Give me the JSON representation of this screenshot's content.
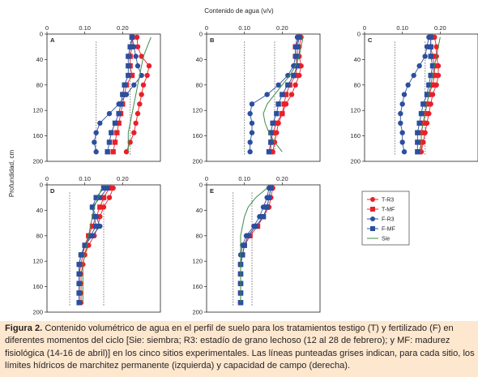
{
  "figure": {
    "top_axis_title": "Contenido de agua (v/v)",
    "left_axis_title": "Profundidad, cm",
    "caption_label": "Figura 2.",
    "caption_text": "Contenido volumétrico de agua en el perfil de suelo para los tratamientos testigo (T) y fertilizado (F) en diferentes momentos del ciclo [Sie: siembra; R3: estadío de grano lechoso (12 al 28 de febrero); y MF: madurez fisiológica (14-16 de abril)] en los cinco sitios experimentales. Las líneas punteadas grises indican, para cada sitio, los límites hídricos de marchitez permanente (izquierda) y capacidad de campo (derecha)."
  },
  "colors": {
    "T": "#e8202a",
    "F": "#2b4f9e",
    "sie": "#3f8a4a",
    "limits": "#7f7f7f"
  },
  "legend": [
    "T-R3",
    "T-MF",
    "F-R3",
    "F-MF",
    "Sie"
  ],
  "chart_data": {
    "type": "line",
    "x_label": "Contenido de agua (v/v)",
    "y_label": "Profundidad, cm",
    "xlim": [
      0,
      0.3
    ],
    "ylim": [
      200,
      0
    ],
    "x_ticks": [
      0,
      0.1,
      0.2
    ],
    "x_tick_labels": [
      "0",
      "0.10",
      "0.20"
    ],
    "y_ticks": [
      0,
      40,
      80,
      120,
      160,
      200
    ],
    "panels": [
      {
        "label": "A",
        "depths": [
          5,
          20,
          35,
          50,
          65,
          80,
          95,
          110,
          125,
          140,
          155,
          170,
          185
        ],
        "series": [
          {
            "name": "T-R3",
            "values": [
              0.238,
              0.24,
              0.25,
              0.27,
              0.265,
              0.255,
              0.25,
              0.245,
              0.24,
              0.235,
              0.23,
              0.22,
              0.21
            ]
          },
          {
            "name": "T-MF",
            "values": [
              0.225,
              0.225,
              0.22,
              0.22,
              0.225,
              0.21,
              0.205,
              0.2,
              0.195,
              0.19,
              0.185,
              0.18,
              0.175
            ]
          },
          {
            "name": "F-R3",
            "values": [
              0.225,
              0.23,
              0.235,
              0.24,
              0.25,
              0.23,
              0.21,
              0.19,
              0.165,
              0.14,
              0.13,
              0.125,
              0.13
            ]
          },
          {
            "name": "F-MF",
            "values": [
              0.225,
              0.22,
              0.215,
              0.215,
              0.215,
              0.205,
              0.2,
              0.195,
              0.19,
              0.18,
              0.17,
              0.165,
              0.16
            ]
          },
          {
            "name": "Sie",
            "values": [
              0.275,
              0.265,
              0.255,
              0.25,
              0.245,
              0.24,
              0.235,
              0.23,
              0.225,
              0.22,
              0.215,
              0.215,
              0.215
            ]
          }
        ],
        "pmp": 0.13,
        "cc": 0.22
      },
      {
        "label": "B",
        "depths": [
          5,
          20,
          35,
          50,
          65,
          80,
          95,
          110,
          125,
          140,
          155,
          170,
          185
        ],
        "series": [
          {
            "name": "T-R3",
            "values": [
              0.25,
              0.245,
              0.245,
              0.25,
              0.245,
              0.235,
              0.225,
              0.21,
              0.2,
              0.19,
              0.185,
              0.18,
              0.175
            ]
          },
          {
            "name": "T-MF",
            "values": [
              0.245,
              0.235,
              0.235,
              0.24,
              0.235,
              0.22,
              0.21,
              0.205,
              0.2,
              0.185,
              0.175,
              0.17,
              0.17
            ]
          },
          {
            "name": "F-R3",
            "values": [
              0.24,
              0.235,
              0.235,
              0.23,
              0.215,
              0.19,
              0.16,
              0.12,
              0.115,
              0.12,
              0.12,
              0.115,
              0.115
            ]
          },
          {
            "name": "F-MF",
            "values": [
              0.245,
              0.24,
              0.24,
              0.24,
              0.23,
              0.215,
              0.2,
              0.19,
              0.185,
              0.175,
              0.17,
              0.17,
              0.165
            ]
          },
          {
            "name": "Sie",
            "values": [
              0.255,
              0.25,
              0.245,
              0.235,
              0.22,
              0.2,
              0.18,
              0.16,
              0.15,
              0.155,
              0.165,
              0.18,
              0.2
            ]
          }
        ],
        "pmp": 0.1,
        "cc": 0.18
      },
      {
        "label": "C",
        "depths": [
          5,
          20,
          35,
          50,
          65,
          80,
          95,
          110,
          125,
          140,
          155,
          170,
          185
        ],
        "series": [
          {
            "name": "T-R3",
            "values": [
              0.185,
              0.19,
              0.19,
              0.195,
              0.195,
              0.19,
              0.18,
              0.175,
              0.17,
              0.165,
              0.16,
              0.155,
              0.15
            ]
          },
          {
            "name": "T-MF",
            "values": [
              0.175,
              0.175,
              0.18,
              0.185,
              0.185,
              0.18,
              0.17,
              0.165,
              0.16,
              0.155,
              0.15,
              0.15,
              0.145
            ]
          },
          {
            "name": "F-R3",
            "values": [
              0.17,
              0.165,
              0.16,
              0.145,
              0.13,
              0.115,
              0.105,
              0.1,
              0.095,
              0.095,
              0.1,
              0.1,
              0.105
            ]
          },
          {
            "name": "F-MF",
            "values": [
              0.175,
              0.175,
              0.175,
              0.18,
              0.175,
              0.17,
              0.165,
              0.155,
              0.15,
              0.145,
              0.14,
              0.14,
              0.14
            ]
          },
          {
            "name": "Sie",
            "values": [
              0.2,
              0.195,
              0.19,
              0.185,
              0.18,
              0.175,
              0.17,
              0.165,
              0.16,
              0.155,
              0.15,
              0.15,
              0.15
            ]
          }
        ],
        "pmp": 0.08,
        "cc": 0.16
      },
      {
        "label": "D",
        "depths": [
          5,
          20,
          35,
          50,
          65,
          80,
          95,
          110,
          125,
          140,
          155,
          170,
          185
        ],
        "series": [
          {
            "name": "T-R3",
            "values": [
              0.175,
              0.165,
              0.15,
              0.14,
              0.135,
              0.125,
              0.11,
              0.1,
              0.095,
              0.09,
              0.09,
              0.09,
              0.09
            ]
          },
          {
            "name": "T-MF",
            "values": [
              0.165,
              0.15,
              0.14,
              0.13,
              0.12,
              0.11,
              0.1,
              0.095,
              0.09,
              0.085,
              0.085,
              0.085,
              0.085
            ]
          },
          {
            "name": "F-R3",
            "values": [
              0.16,
              0.14,
              0.12,
              0.13,
              0.14,
              0.12,
              0.1,
              0.09,
              0.085,
              0.085,
              0.085,
              0.085,
              0.085
            ]
          },
          {
            "name": "F-MF",
            "values": [
              0.15,
              0.13,
              0.12,
              0.125,
              0.13,
              0.115,
              0.1,
              0.09,
              0.085,
              0.085,
              0.085,
              0.085,
              0.085
            ]
          },
          {
            "name": "Sie",
            "values": [
              0.145,
              0.135,
              0.125,
              0.12,
              0.115,
              0.11,
              0.105,
              0.1,
              0.095,
              0.095,
              0.095,
              0.095,
              0.095
            ]
          }
        ],
        "pmp": 0.06,
        "cc": 0.15
      },
      {
        "label": "E",
        "depths": [
          5,
          20,
          35,
          50,
          65,
          80,
          95,
          110,
          125,
          140,
          155,
          170,
          185
        ],
        "series": [
          {
            "name": "T-R3",
            "values": [
              0.175,
              0.17,
              0.165,
              0.15,
              0.13,
              0.11,
              0.1,
              0.095,
              0.09,
              0.09,
              0.09,
              0.09,
              0.09
            ]
          },
          {
            "name": "T-MF",
            "values": [
              0.17,
              0.165,
              0.16,
              0.15,
              0.135,
              0.115,
              0.1,
              0.095,
              0.09,
              0.09,
              0.09,
              0.09,
              0.09
            ]
          },
          {
            "name": "F-R3",
            "values": [
              0.165,
              0.16,
              0.15,
              0.14,
              0.125,
              0.105,
              0.095,
              0.09,
              0.09,
              0.09,
              0.09,
              0.09,
              0.09
            ]
          },
          {
            "name": "F-MF",
            "values": [
              0.17,
              0.165,
              0.16,
              0.15,
              0.13,
              0.11,
              0.1,
              0.095,
              0.09,
              0.09,
              0.09,
              0.09,
              0.09
            ]
          },
          {
            "name": "Sie",
            "values": [
              0.16,
              0.13,
              0.11,
              0.1,
              0.095,
              0.09,
              0.09,
              0.09,
              0.09,
              0.09,
              0.09,
              0.09,
              0.09
            ]
          }
        ],
        "pmp": 0.07,
        "cc": 0.12
      }
    ]
  }
}
